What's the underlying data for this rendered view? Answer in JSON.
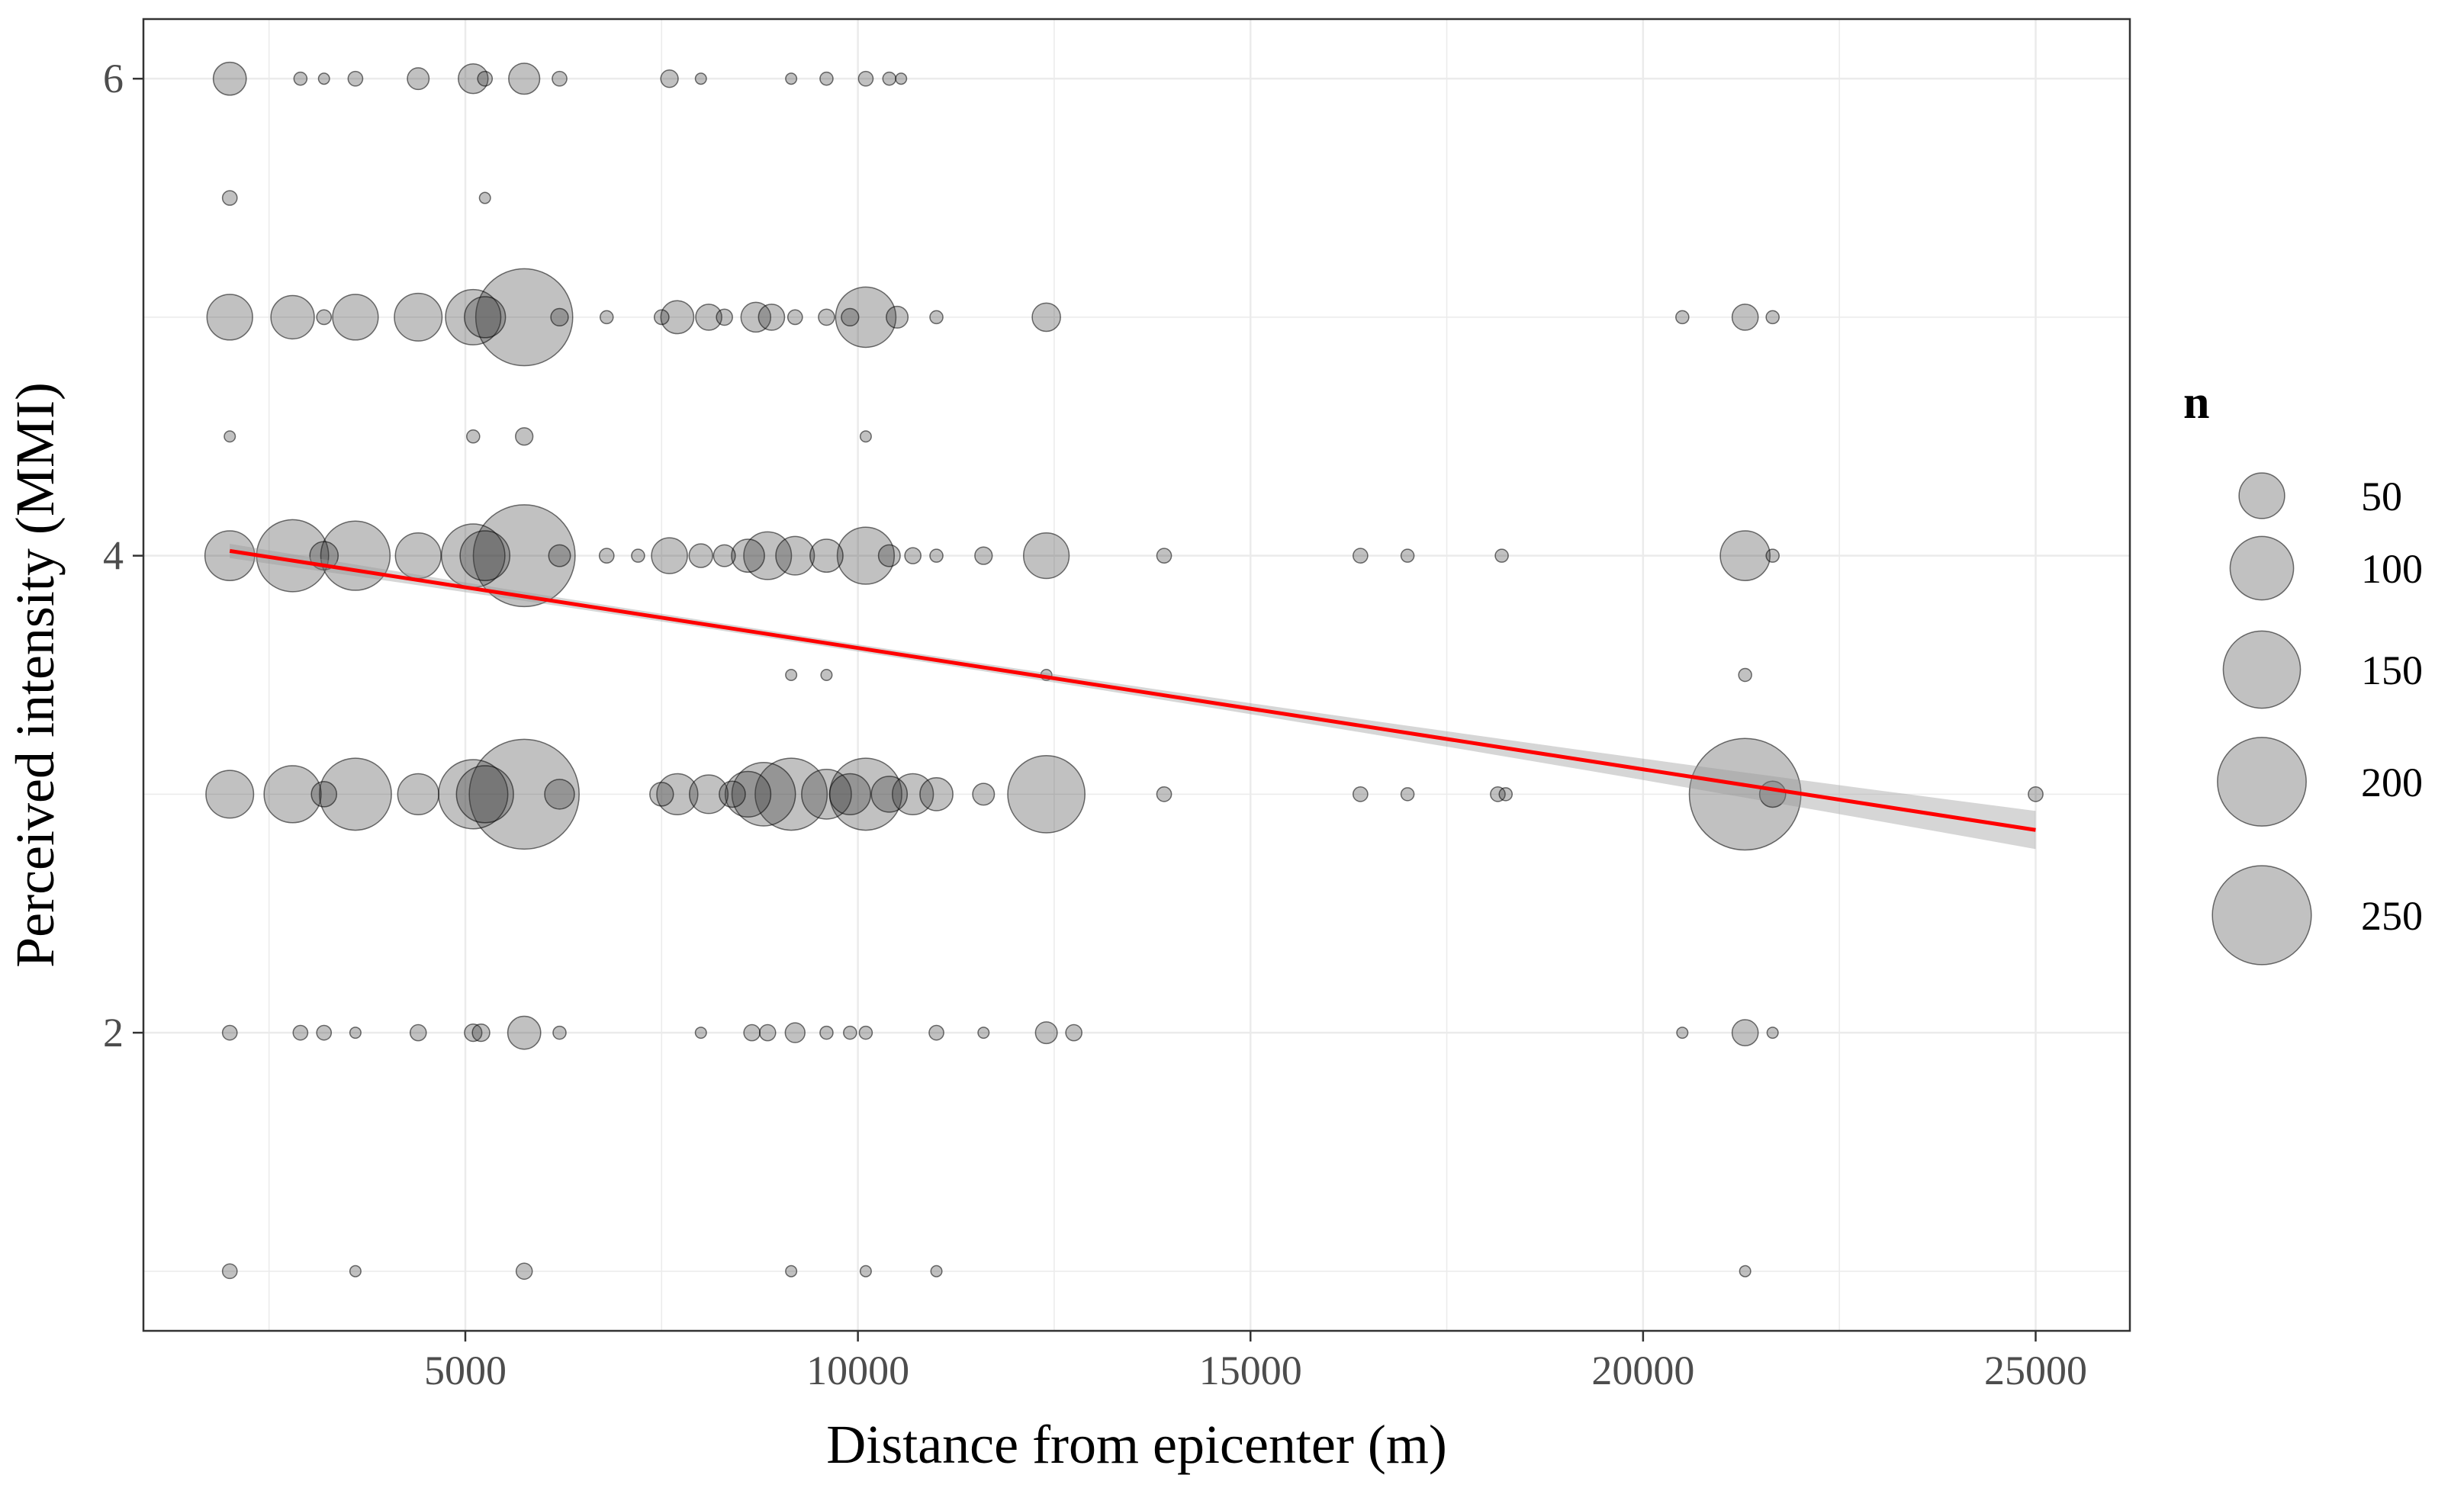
{
  "chart_data": {
    "type": "scatter",
    "title": "",
    "xlabel": "Distance from epicenter (m)",
    "ylabel": "Perceived intensity (MMI)",
    "xlim": [
      900,
      26200
    ],
    "ylim": [
      0.75,
      6.25
    ],
    "x_ticks": [
      5000,
      10000,
      15000,
      20000,
      25000
    ],
    "x_tick_labels": [
      "5000",
      "10000",
      "15000",
      "20000",
      "25000"
    ],
    "y_ticks": [
      2,
      4,
      6
    ],
    "y_tick_labels": [
      "2",
      "4",
      "6"
    ],
    "grid": true,
    "size_legend": {
      "title": "n",
      "values": [
        50,
        100,
        150,
        200,
        250
      ],
      "labels": [
        "50",
        "100",
        "150",
        "200",
        "250"
      ]
    },
    "points": [
      {
        "x": 2000,
        "y": 6,
        "n": 25
      },
      {
        "x": 2900,
        "y": 6,
        "n": 3
      },
      {
        "x": 3200,
        "y": 6,
        "n": 2
      },
      {
        "x": 3600,
        "y": 6,
        "n": 4
      },
      {
        "x": 4400,
        "y": 6,
        "n": 10
      },
      {
        "x": 5100,
        "y": 6,
        "n": 20
      },
      {
        "x": 5250,
        "y": 6,
        "n": 4
      },
      {
        "x": 5750,
        "y": 6,
        "n": 22
      },
      {
        "x": 6200,
        "y": 6,
        "n": 4
      },
      {
        "x": 7600,
        "y": 6,
        "n": 6
      },
      {
        "x": 8000,
        "y": 6,
        "n": 2
      },
      {
        "x": 9150,
        "y": 6,
        "n": 2
      },
      {
        "x": 9600,
        "y": 6,
        "n": 3
      },
      {
        "x": 10100,
        "y": 6,
        "n": 4
      },
      {
        "x": 10400,
        "y": 6,
        "n": 3
      },
      {
        "x": 10550,
        "y": 6,
        "n": 2
      },
      {
        "x": 2000,
        "y": 5.5,
        "n": 4
      },
      {
        "x": 5250,
        "y": 5.5,
        "n": 2
      },
      {
        "x": 2000,
        "y": 5,
        "n": 50
      },
      {
        "x": 2800,
        "y": 5,
        "n": 45
      },
      {
        "x": 3200,
        "y": 5,
        "n": 4
      },
      {
        "x": 3600,
        "y": 5,
        "n": 50
      },
      {
        "x": 4400,
        "y": 5,
        "n": 55
      },
      {
        "x": 5100,
        "y": 5,
        "n": 75
      },
      {
        "x": 5250,
        "y": 5,
        "n": 40
      },
      {
        "x": 5750,
        "y": 5,
        "n": 240
      },
      {
        "x": 6200,
        "y": 5,
        "n": 6
      },
      {
        "x": 6800,
        "y": 5,
        "n": 3
      },
      {
        "x": 7500,
        "y": 5,
        "n": 4
      },
      {
        "x": 7700,
        "y": 5,
        "n": 25
      },
      {
        "x": 8100,
        "y": 5,
        "n": 15
      },
      {
        "x": 8300,
        "y": 5,
        "n": 5
      },
      {
        "x": 8700,
        "y": 5,
        "n": 20
      },
      {
        "x": 8900,
        "y": 5,
        "n": 15
      },
      {
        "x": 9200,
        "y": 5,
        "n": 4
      },
      {
        "x": 9600,
        "y": 5,
        "n": 5
      },
      {
        "x": 9900,
        "y": 5,
        "n": 6
      },
      {
        "x": 10100,
        "y": 5,
        "n": 90
      },
      {
        "x": 10500,
        "y": 5,
        "n": 10
      },
      {
        "x": 11000,
        "y": 5,
        "n": 3
      },
      {
        "x": 12400,
        "y": 5,
        "n": 18
      },
      {
        "x": 20500,
        "y": 5,
        "n": 3
      },
      {
        "x": 21300,
        "y": 5,
        "n": 15
      },
      {
        "x": 21650,
        "y": 5,
        "n": 3
      },
      {
        "x": 2000,
        "y": 4.5,
        "n": 2
      },
      {
        "x": 5100,
        "y": 4.5,
        "n": 3
      },
      {
        "x": 5750,
        "y": 4.5,
        "n": 6
      },
      {
        "x": 10100,
        "y": 4.5,
        "n": 2
      },
      {
        "x": 2000,
        "y": 4,
        "n": 60
      },
      {
        "x": 2800,
        "y": 4,
        "n": 130
      },
      {
        "x": 3200,
        "y": 4,
        "n": 18
      },
      {
        "x": 3600,
        "y": 4,
        "n": 120
      },
      {
        "x": 4400,
        "y": 4,
        "n": 50
      },
      {
        "x": 5100,
        "y": 4,
        "n": 100
      },
      {
        "x": 5250,
        "y": 4,
        "n": 60
      },
      {
        "x": 5750,
        "y": 4,
        "n": 265
      },
      {
        "x": 6200,
        "y": 4,
        "n": 10
      },
      {
        "x": 6800,
        "y": 4,
        "n": 4
      },
      {
        "x": 7200,
        "y": 4,
        "n": 3
      },
      {
        "x": 7600,
        "y": 4,
        "n": 30
      },
      {
        "x": 8000,
        "y": 4,
        "n": 12
      },
      {
        "x": 8300,
        "y": 4,
        "n": 10
      },
      {
        "x": 8600,
        "y": 4,
        "n": 25
      },
      {
        "x": 8850,
        "y": 4,
        "n": 55
      },
      {
        "x": 9200,
        "y": 4,
        "n": 35
      },
      {
        "x": 9600,
        "y": 4,
        "n": 25
      },
      {
        "x": 10100,
        "y": 4,
        "n": 80
      },
      {
        "x": 10400,
        "y": 4,
        "n": 10
      },
      {
        "x": 10700,
        "y": 4,
        "n": 5
      },
      {
        "x": 11000,
        "y": 4,
        "n": 3
      },
      {
        "x": 11600,
        "y": 4,
        "n": 6
      },
      {
        "x": 12400,
        "y": 4,
        "n": 50
      },
      {
        "x": 13900,
        "y": 4,
        "n": 4
      },
      {
        "x": 16400,
        "y": 4,
        "n": 4
      },
      {
        "x": 17000,
        "y": 4,
        "n": 3
      },
      {
        "x": 18200,
        "y": 4,
        "n": 3
      },
      {
        "x": 21300,
        "y": 4,
        "n": 60
      },
      {
        "x": 21650,
        "y": 4,
        "n": 3
      },
      {
        "x": 9150,
        "y": 3.5,
        "n": 2
      },
      {
        "x": 9600,
        "y": 3.5,
        "n": 2
      },
      {
        "x": 12400,
        "y": 3.5,
        "n": 2
      },
      {
        "x": 21300,
        "y": 3.5,
        "n": 3
      },
      {
        "x": 2000,
        "y": 3,
        "n": 55
      },
      {
        "x": 2800,
        "y": 3,
        "n": 80
      },
      {
        "x": 3200,
        "y": 3,
        "n": 14
      },
      {
        "x": 3600,
        "y": 3,
        "n": 130
      },
      {
        "x": 4400,
        "y": 3,
        "n": 40
      },
      {
        "x": 5100,
        "y": 3,
        "n": 120
      },
      {
        "x": 5250,
        "y": 3,
        "n": 80
      },
      {
        "x": 5750,
        "y": 3,
        "n": 310
      },
      {
        "x": 6200,
        "y": 3,
        "n": 20
      },
      {
        "x": 7500,
        "y": 3,
        "n": 12
      },
      {
        "x": 7700,
        "y": 3,
        "n": 40
      },
      {
        "x": 8100,
        "y": 3,
        "n": 35
      },
      {
        "x": 8400,
        "y": 3,
        "n": 15
      },
      {
        "x": 8600,
        "y": 3,
        "n": 50
      },
      {
        "x": 8800,
        "y": 3,
        "n": 100
      },
      {
        "x": 9150,
        "y": 3,
        "n": 130
      },
      {
        "x": 9600,
        "y": 3,
        "n": 60
      },
      {
        "x": 9900,
        "y": 3,
        "n": 40
      },
      {
        "x": 10100,
        "y": 3,
        "n": 130
      },
      {
        "x": 10400,
        "y": 3,
        "n": 30
      },
      {
        "x": 10700,
        "y": 3,
        "n": 40
      },
      {
        "x": 11000,
        "y": 3,
        "n": 25
      },
      {
        "x": 11600,
        "y": 3,
        "n": 10
      },
      {
        "x": 12400,
        "y": 3,
        "n": 150
      },
      {
        "x": 13900,
        "y": 3,
        "n": 4
      },
      {
        "x": 16400,
        "y": 3,
        "n": 4
      },
      {
        "x": 17000,
        "y": 3,
        "n": 3
      },
      {
        "x": 18150,
        "y": 3,
        "n": 4
      },
      {
        "x": 18250,
        "y": 3,
        "n": 3
      },
      {
        "x": 21300,
        "y": 3,
        "n": 320
      },
      {
        "x": 21650,
        "y": 3,
        "n": 15
      },
      {
        "x": 25000,
        "y": 3,
        "n": 4
      },
      {
        "x": 2000,
        "y": 2,
        "n": 4
      },
      {
        "x": 2900,
        "y": 2,
        "n": 4
      },
      {
        "x": 3200,
        "y": 2,
        "n": 4
      },
      {
        "x": 3600,
        "y": 2,
        "n": 2
      },
      {
        "x": 4400,
        "y": 2,
        "n": 5
      },
      {
        "x": 5100,
        "y": 2,
        "n": 6
      },
      {
        "x": 5200,
        "y": 2,
        "n": 6
      },
      {
        "x": 5750,
        "y": 2,
        "n": 25
      },
      {
        "x": 6200,
        "y": 2,
        "n": 3
      },
      {
        "x": 8000,
        "y": 2,
        "n": 2
      },
      {
        "x": 8650,
        "y": 2,
        "n": 5
      },
      {
        "x": 8850,
        "y": 2,
        "n": 5
      },
      {
        "x": 9200,
        "y": 2,
        "n": 8
      },
      {
        "x": 9600,
        "y": 2,
        "n": 3
      },
      {
        "x": 9900,
        "y": 2,
        "n": 3
      },
      {
        "x": 10100,
        "y": 2,
        "n": 3
      },
      {
        "x": 11000,
        "y": 2,
        "n": 4
      },
      {
        "x": 11600,
        "y": 2,
        "n": 2
      },
      {
        "x": 12400,
        "y": 2,
        "n": 10
      },
      {
        "x": 12750,
        "y": 2,
        "n": 5
      },
      {
        "x": 20500,
        "y": 2,
        "n": 2
      },
      {
        "x": 21300,
        "y": 2,
        "n": 15
      },
      {
        "x": 21650,
        "y": 2,
        "n": 2
      },
      {
        "x": 2000,
        "y": 1,
        "n": 4
      },
      {
        "x": 3600,
        "y": 1,
        "n": 2
      },
      {
        "x": 5750,
        "y": 1,
        "n": 5
      },
      {
        "x": 9150,
        "y": 1,
        "n": 2
      },
      {
        "x": 10100,
        "y": 1,
        "n": 2
      },
      {
        "x": 11000,
        "y": 1,
        "n": 2
      },
      {
        "x": 21300,
        "y": 1,
        "n": 2
      }
    ],
    "trend": {
      "color": "#ff0000",
      "x": [
        2000,
        25000
      ],
      "y": [
        4.02,
        2.85
      ],
      "ci_half_width_start": 0.03,
      "ci_half_width_end": 0.08,
      "ci_half_width_min": 0.015,
      "ci_min_at_x": 9500
    },
    "colors": {
      "point_fill": "#333333",
      "point_fill_opacity": 0.3,
      "point_stroke": "#000000",
      "trend": "#ff0000",
      "ribbon": "#999999",
      "grid": "#ebebeb",
      "panel_border": "#333333"
    }
  }
}
